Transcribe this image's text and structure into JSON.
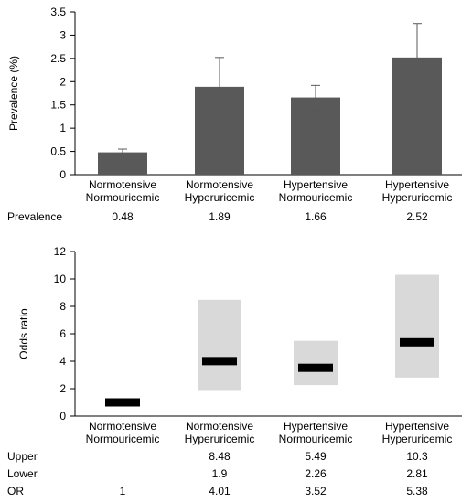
{
  "chart_data": [
    {
      "type": "bar",
      "ylabel": "Prevalence  (%)",
      "ylim": [
        0,
        3.5
      ],
      "yticks": [
        "0",
        "0.5",
        "1",
        "1.5",
        "2",
        "2.5",
        "3",
        "3.5"
      ],
      "categories": [
        [
          "Normotensive",
          "Normouricemic"
        ],
        [
          "Normotensive",
          "Hyperuricemic"
        ],
        [
          "Hypertensive",
          "Normouricemic"
        ],
        [
          "Hypertensive",
          "Hyperuricemic"
        ]
      ],
      "values": [
        0.48,
        1.89,
        1.66,
        2.52
      ],
      "error_upper": [
        0.55,
        2.52,
        1.92,
        3.25
      ],
      "error_lower": [
        0.41,
        1.26,
        1.4,
        1.79
      ],
      "bar_color": "#595959",
      "table": {
        "rows": [
          {
            "label": "Prevalence",
            "cells": [
              "0.48",
              "1.89",
              "1.66",
              "2.52"
            ]
          }
        ]
      }
    },
    {
      "type": "range",
      "ylabel": "Odds ratio",
      "ylim": [
        0,
        12
      ],
      "yticks": [
        "0",
        "2",
        "4",
        "6",
        "8",
        "10",
        "12"
      ],
      "categories": [
        [
          "Normotensive",
          "Normouricemic"
        ],
        [
          "Normotensive",
          "Hyperuricemic"
        ],
        [
          "Hypertensive",
          "Normouricemic"
        ],
        [
          "Hypertensive",
          "Hyperuricemic"
        ]
      ],
      "or": [
        1,
        4.01,
        3.52,
        5.38
      ],
      "upper": [
        null,
        8.48,
        5.49,
        10.3
      ],
      "lower": [
        null,
        1.9,
        2.26,
        2.81
      ],
      "range_color": "#d9d9d9",
      "marker_color": "#000000",
      "table": {
        "rows": [
          {
            "label": "Upper",
            "cells": [
              "",
              "8.48",
              "5.49",
              "10.3"
            ]
          },
          {
            "label": "Lower",
            "cells": [
              "",
              "1.9",
              "2.26",
              "2.81"
            ]
          },
          {
            "label": "OR",
            "cells": [
              "1",
              "4.01",
              "3.52",
              "5.38"
            ]
          }
        ]
      }
    }
  ]
}
